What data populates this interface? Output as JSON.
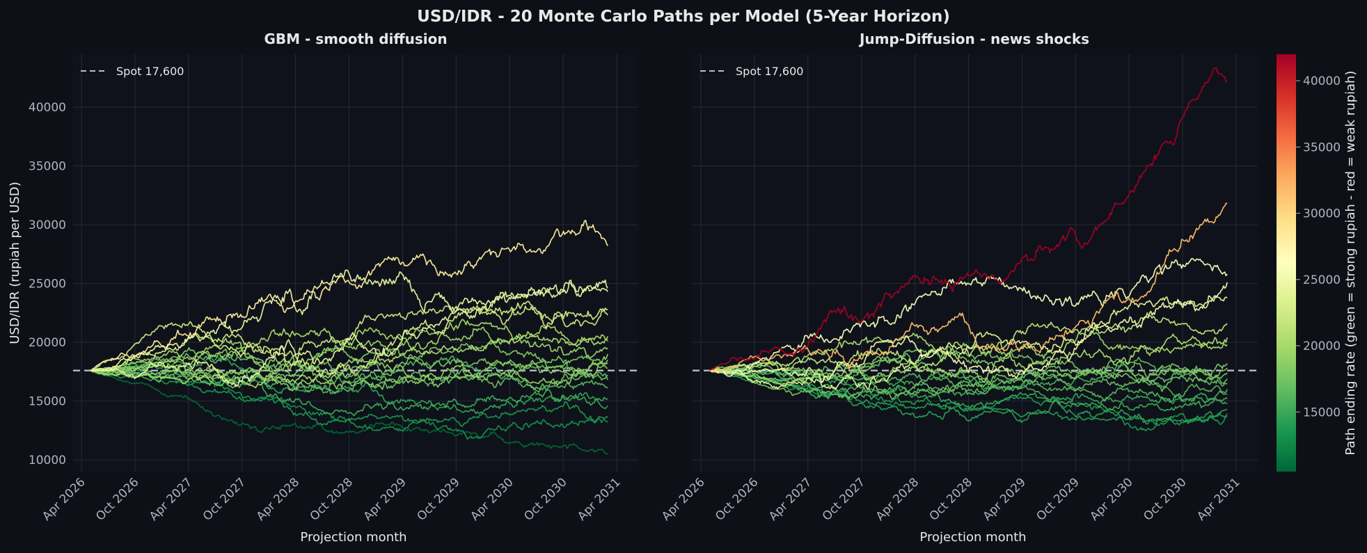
{
  "figure": {
    "title": "USD/IDR  -  20 Monte Carlo Paths per Model  (5-Year Horizon)",
    "background": "#0d1017",
    "axes_background": "#0f121a",
    "grid_color": "#262b36",
    "text_color": "#e8e8e8",
    "tick_color": "#b0b4bc"
  },
  "colorbar": {
    "label": "Path ending rate   (green = strong rupiah  -  red = weak rupiah)",
    "min": 10500,
    "max": 42000,
    "ticks": [
      15000,
      20000,
      25000,
      30000,
      35000,
      40000
    ],
    "colormap": [
      "#006837",
      "#1a9850",
      "#66bd63",
      "#a6d96a",
      "#d9ef8b",
      "#ffffbf",
      "#fee08b",
      "#fdae61",
      "#f46d43",
      "#d73027",
      "#a50026"
    ]
  },
  "chart_data": [
    {
      "type": "line",
      "title": "GBM - smooth diffusion",
      "xlabel": "Projection month",
      "ylabel": "USD/IDR (rupiah per USD)",
      "x_ticks": [
        "Apr 2026",
        "Oct 2026",
        "Apr 2027",
        "Oct 2027",
        "Apr 2028",
        "Oct 2028",
        "Apr 2029",
        "Oct 2029",
        "Apr 2030",
        "Oct 2030",
        "Apr 2031"
      ],
      "x_range": [
        "2026-04",
        "2031-04"
      ],
      "path_start": "2026-05",
      "path_end": "2031-03",
      "y_ticks": [
        10000,
        15000,
        20000,
        25000,
        30000,
        35000,
        40000
      ],
      "ylim": [
        9000,
        44500
      ],
      "grid": true,
      "legend": {
        "position": "top-left",
        "label": "Spot 17,600"
      },
      "reference_line": {
        "value": 17600,
        "style": "dashed",
        "color": "#b8bcc6"
      },
      "series": [
        {
          "start": 17600,
          "end": 28200,
          "vol": 1200,
          "seed": 11,
          "anchors": [
            {
              "t": 0.45,
              "v": 24500
            },
            {
              "t": 0.75,
              "v": 27000
            },
            {
              "t": 0.96,
              "v": 30000
            }
          ]
        },
        {
          "start": 17600,
          "end": 24600,
          "vol": 1300,
          "seed": 12,
          "anchors": [
            {
              "t": 0.25,
              "v": 21500
            },
            {
              "t": 0.45,
              "v": 25000
            },
            {
              "t": 0.7,
              "v": 22500
            }
          ]
        },
        {
          "start": 17600,
          "end": 24300,
          "vol": 1100,
          "seed": 13,
          "anchors": [
            {
              "t": 0.3,
              "v": 17000
            },
            {
              "t": 0.6,
              "v": 20000
            },
            {
              "t": 0.85,
              "v": 24000
            }
          ]
        },
        {
          "start": 17600,
          "end": 22800,
          "vol": 1100,
          "seed": 14,
          "anchors": [
            {
              "t": 0.2,
              "v": 20500
            },
            {
              "t": 0.5,
              "v": 18000
            },
            {
              "t": 0.8,
              "v": 21500
            }
          ]
        },
        {
          "start": 17600,
          "end": 22300,
          "vol": 1000,
          "seed": 15,
          "anchors": [
            {
              "t": 0.15,
              "v": 21500
            },
            {
              "t": 0.4,
              "v": 19000
            },
            {
              "t": 0.7,
              "v": 23000
            }
          ]
        },
        {
          "start": 17600,
          "end": 20500,
          "vol": 900,
          "seed": 16,
          "anchors": [
            {
              "t": 0.3,
              "v": 16500
            },
            {
              "t": 0.6,
              "v": 19000
            }
          ]
        },
        {
          "start": 17600,
          "end": 20100,
          "vol": 900,
          "seed": 17,
          "anchors": [
            {
              "t": 0.3,
              "v": 19500
            },
            {
              "t": 0.6,
              "v": 20500
            }
          ]
        },
        {
          "start": 17600,
          "end": 19500,
          "vol": 900,
          "seed": 18,
          "anchors": [
            {
              "t": 0.35,
              "v": 18500
            },
            {
              "t": 0.65,
              "v": 21000
            }
          ]
        },
        {
          "start": 17600,
          "end": 19000,
          "vol": 850,
          "seed": 19,
          "anchors": [
            {
              "t": 0.25,
              "v": 17500
            },
            {
              "t": 0.6,
              "v": 18000
            }
          ]
        },
        {
          "start": 17600,
          "end": 18500,
          "vol": 850,
          "seed": 20,
          "anchors": [
            {
              "t": 0.3,
              "v": 19000
            },
            {
              "t": 0.7,
              "v": 17000
            }
          ]
        },
        {
          "start": 17600,
          "end": 18200,
          "vol": 800,
          "seed": 21,
          "anchors": [
            {
              "t": 0.4,
              "v": 17500
            },
            {
              "t": 0.75,
              "v": 19500
            }
          ]
        },
        {
          "start": 17600,
          "end": 17800,
          "vol": 800,
          "seed": 22,
          "anchors": [
            {
              "t": 0.3,
              "v": 16500
            },
            {
              "t": 0.7,
              "v": 18500
            }
          ]
        },
        {
          "start": 17600,
          "end": 17200,
          "vol": 800,
          "seed": 23,
          "anchors": [
            {
              "t": 0.35,
              "v": 18000
            },
            {
              "t": 0.7,
              "v": 17000
            }
          ]
        },
        {
          "start": 17600,
          "end": 16800,
          "vol": 800,
          "seed": 24,
          "anchors": [
            {
              "t": 0.3,
              "v": 17000
            },
            {
              "t": 0.65,
              "v": 16500
            }
          ]
        },
        {
          "start": 17600,
          "end": 16100,
          "vol": 800,
          "seed": 25,
          "anchors": [
            {
              "t": 0.4,
              "v": 16000
            },
            {
              "t": 0.75,
              "v": 17500
            }
          ]
        },
        {
          "start": 17600,
          "end": 15200,
          "vol": 750,
          "seed": 26,
          "anchors": [
            {
              "t": 0.35,
              "v": 15500
            },
            {
              "t": 0.7,
              "v": 15000
            }
          ]
        },
        {
          "start": 17600,
          "end": 14600,
          "vol": 750,
          "seed": 27,
          "anchors": [
            {
              "t": 0.4,
              "v": 16000
            },
            {
              "t": 0.75,
              "v": 14000
            }
          ]
        },
        {
          "start": 17600,
          "end": 13600,
          "vol": 700,
          "seed": 28,
          "anchors": [
            {
              "t": 0.3,
              "v": 15000
            },
            {
              "t": 0.65,
              "v": 13500
            }
          ]
        },
        {
          "start": 17600,
          "end": 13200,
          "vol": 700,
          "seed": 29,
          "anchors": [
            {
              "t": 0.4,
              "v": 14500
            },
            {
              "t": 0.7,
              "v": 12500
            }
          ]
        },
        {
          "start": 17600,
          "end": 10500,
          "vol": 600,
          "seed": 30,
          "anchors": [
            {
              "t": 0.3,
              "v": 13000
            },
            {
              "t": 0.55,
              "v": 13000
            },
            {
              "t": 0.8,
              "v": 11500
            }
          ]
        }
      ]
    },
    {
      "type": "line",
      "title": "Jump-Diffusion - news shocks",
      "xlabel": "Projection month",
      "ylabel": "",
      "x_ticks": [
        "Apr 2026",
        "Oct 2026",
        "Apr 2027",
        "Oct 2027",
        "Apr 2028",
        "Oct 2028",
        "Apr 2029",
        "Oct 2029",
        "Apr 2030",
        "Oct 2030",
        "Apr 2031"
      ],
      "x_range": [
        "2026-04",
        "2031-04"
      ],
      "path_start": "2026-05",
      "path_end": "2031-03",
      "y_ticks": [
        10000,
        15000,
        20000,
        25000,
        30000,
        35000,
        40000
      ],
      "ylim": [
        9000,
        44500
      ],
      "grid": true,
      "legend": {
        "position": "top-left",
        "label": "Spot 17,600"
      },
      "reference_line": {
        "value": 17600,
        "style": "dashed",
        "color": "#b8bcc6"
      },
      "series": [
        {
          "start": 17600,
          "end": 42200,
          "vol": 1200,
          "seed": 41,
          "anchors": [
            {
              "t": 0.2,
              "v": 20000
            },
            {
              "t": 0.38,
              "v": 25000
            },
            {
              "t": 0.55,
              "v": 25500
            },
            {
              "t": 0.72,
              "v": 28000
            },
            {
              "t": 0.85,
              "v": 35000
            },
            {
              "t": 0.98,
              "v": 43000
            }
          ]
        },
        {
          "start": 17600,
          "end": 31800,
          "vol": 1100,
          "seed": 42,
          "anchors": [
            {
              "t": 0.2,
              "v": 19000
            },
            {
              "t": 0.4,
              "v": 21500
            },
            {
              "t": 0.6,
              "v": 19500
            },
            {
              "t": 0.8,
              "v": 23500
            },
            {
              "t": 0.93,
              "v": 29000
            }
          ]
        },
        {
          "start": 17600,
          "end": 25800,
          "vol": 1200,
          "seed": 43,
          "anchors": [
            {
              "t": 0.35,
              "v": 21500
            },
            {
              "t": 0.5,
              "v": 25000
            },
            {
              "t": 0.65,
              "v": 24000
            },
            {
              "t": 0.9,
              "v": 27000
            }
          ]
        },
        {
          "start": 17600,
          "end": 25100,
          "vol": 1100,
          "seed": 44,
          "anchors": [
            {
              "t": 0.3,
              "v": 18500
            },
            {
              "t": 0.6,
              "v": 17500
            },
            {
              "t": 0.85,
              "v": 22500
            }
          ]
        },
        {
          "start": 17600,
          "end": 23800,
          "vol": 1000,
          "seed": 45,
          "anchors": [
            {
              "t": 0.25,
              "v": 16500
            },
            {
              "t": 0.5,
              "v": 19500
            },
            {
              "t": 0.75,
              "v": 21500
            }
          ]
        },
        {
          "start": 17600,
          "end": 21600,
          "vol": 950,
          "seed": 46,
          "anchors": [
            {
              "t": 0.3,
              "v": 19000
            },
            {
              "t": 0.6,
              "v": 21000
            }
          ]
        },
        {
          "start": 17600,
          "end": 20400,
          "vol": 900,
          "seed": 47,
          "anchors": [
            {
              "t": 0.35,
              "v": 20000
            },
            {
              "t": 0.65,
              "v": 18500
            }
          ]
        },
        {
          "start": 17600,
          "end": 19800,
          "vol": 900,
          "seed": 48,
          "anchors": [
            {
              "t": 0.3,
              "v": 17000
            },
            {
              "t": 0.7,
              "v": 20000
            }
          ]
        },
        {
          "start": 17600,
          "end": 18200,
          "vol": 800,
          "seed": 49,
          "anchors": [
            {
              "t": 0.35,
              "v": 18500
            },
            {
              "t": 0.7,
              "v": 17000
            }
          ]
        },
        {
          "start": 17600,
          "end": 17800,
          "vol": 800,
          "seed": 50,
          "anchors": [
            {
              "t": 0.3,
              "v": 17500
            },
            {
              "t": 0.65,
              "v": 18500
            }
          ]
        },
        {
          "start": 17600,
          "end": 17400,
          "vol": 800,
          "seed": 51,
          "anchors": [
            {
              "t": 0.4,
              "v": 16500
            },
            {
              "t": 0.75,
              "v": 17500
            }
          ]
        },
        {
          "start": 17600,
          "end": 16900,
          "vol": 750,
          "seed": 52,
          "anchors": [
            {
              "t": 0.3,
              "v": 18000
            },
            {
              "t": 0.7,
              "v": 16000
            }
          ]
        },
        {
          "start": 17600,
          "end": 16500,
          "vol": 750,
          "seed": 53,
          "anchors": [
            {
              "t": 0.35,
              "v": 16000
            },
            {
              "t": 0.7,
              "v": 17000
            }
          ]
        },
        {
          "start": 17600,
          "end": 16000,
          "vol": 750,
          "seed": 54,
          "anchors": [
            {
              "t": 0.4,
              "v": 17000
            },
            {
              "t": 0.75,
              "v": 15500
            }
          ]
        },
        {
          "start": 17600,
          "end": 15600,
          "vol": 700,
          "seed": 55,
          "anchors": [
            {
              "t": 0.3,
              "v": 15500
            },
            {
              "t": 0.7,
              "v": 16500
            }
          ]
        },
        {
          "start": 17600,
          "end": 15200,
          "vol": 700,
          "seed": 56,
          "anchors": [
            {
              "t": 0.35,
              "v": 16500
            },
            {
              "t": 0.7,
              "v": 14800
            }
          ]
        },
        {
          "start": 17600,
          "end": 14800,
          "vol": 700,
          "seed": 57,
          "anchors": [
            {
              "t": 0.4,
              "v": 15500
            },
            {
              "t": 0.75,
              "v": 15000
            }
          ]
        },
        {
          "start": 17600,
          "end": 14300,
          "vol": 650,
          "seed": 58,
          "anchors": [
            {
              "t": 0.3,
              "v": 15000
            },
            {
              "t": 0.7,
              "v": 14000
            }
          ]
        },
        {
          "start": 17600,
          "end": 13900,
          "vol": 650,
          "seed": 59,
          "anchors": [
            {
              "t": 0.35,
              "v": 14500
            },
            {
              "t": 0.75,
              "v": 13500
            }
          ]
        },
        {
          "start": 17600,
          "end": 13700,
          "vol": 650,
          "seed": 60,
          "anchors": [
            {
              "t": 0.4,
              "v": 15000
            },
            {
              "t": 0.8,
              "v": 13200
            }
          ]
        }
      ]
    }
  ]
}
